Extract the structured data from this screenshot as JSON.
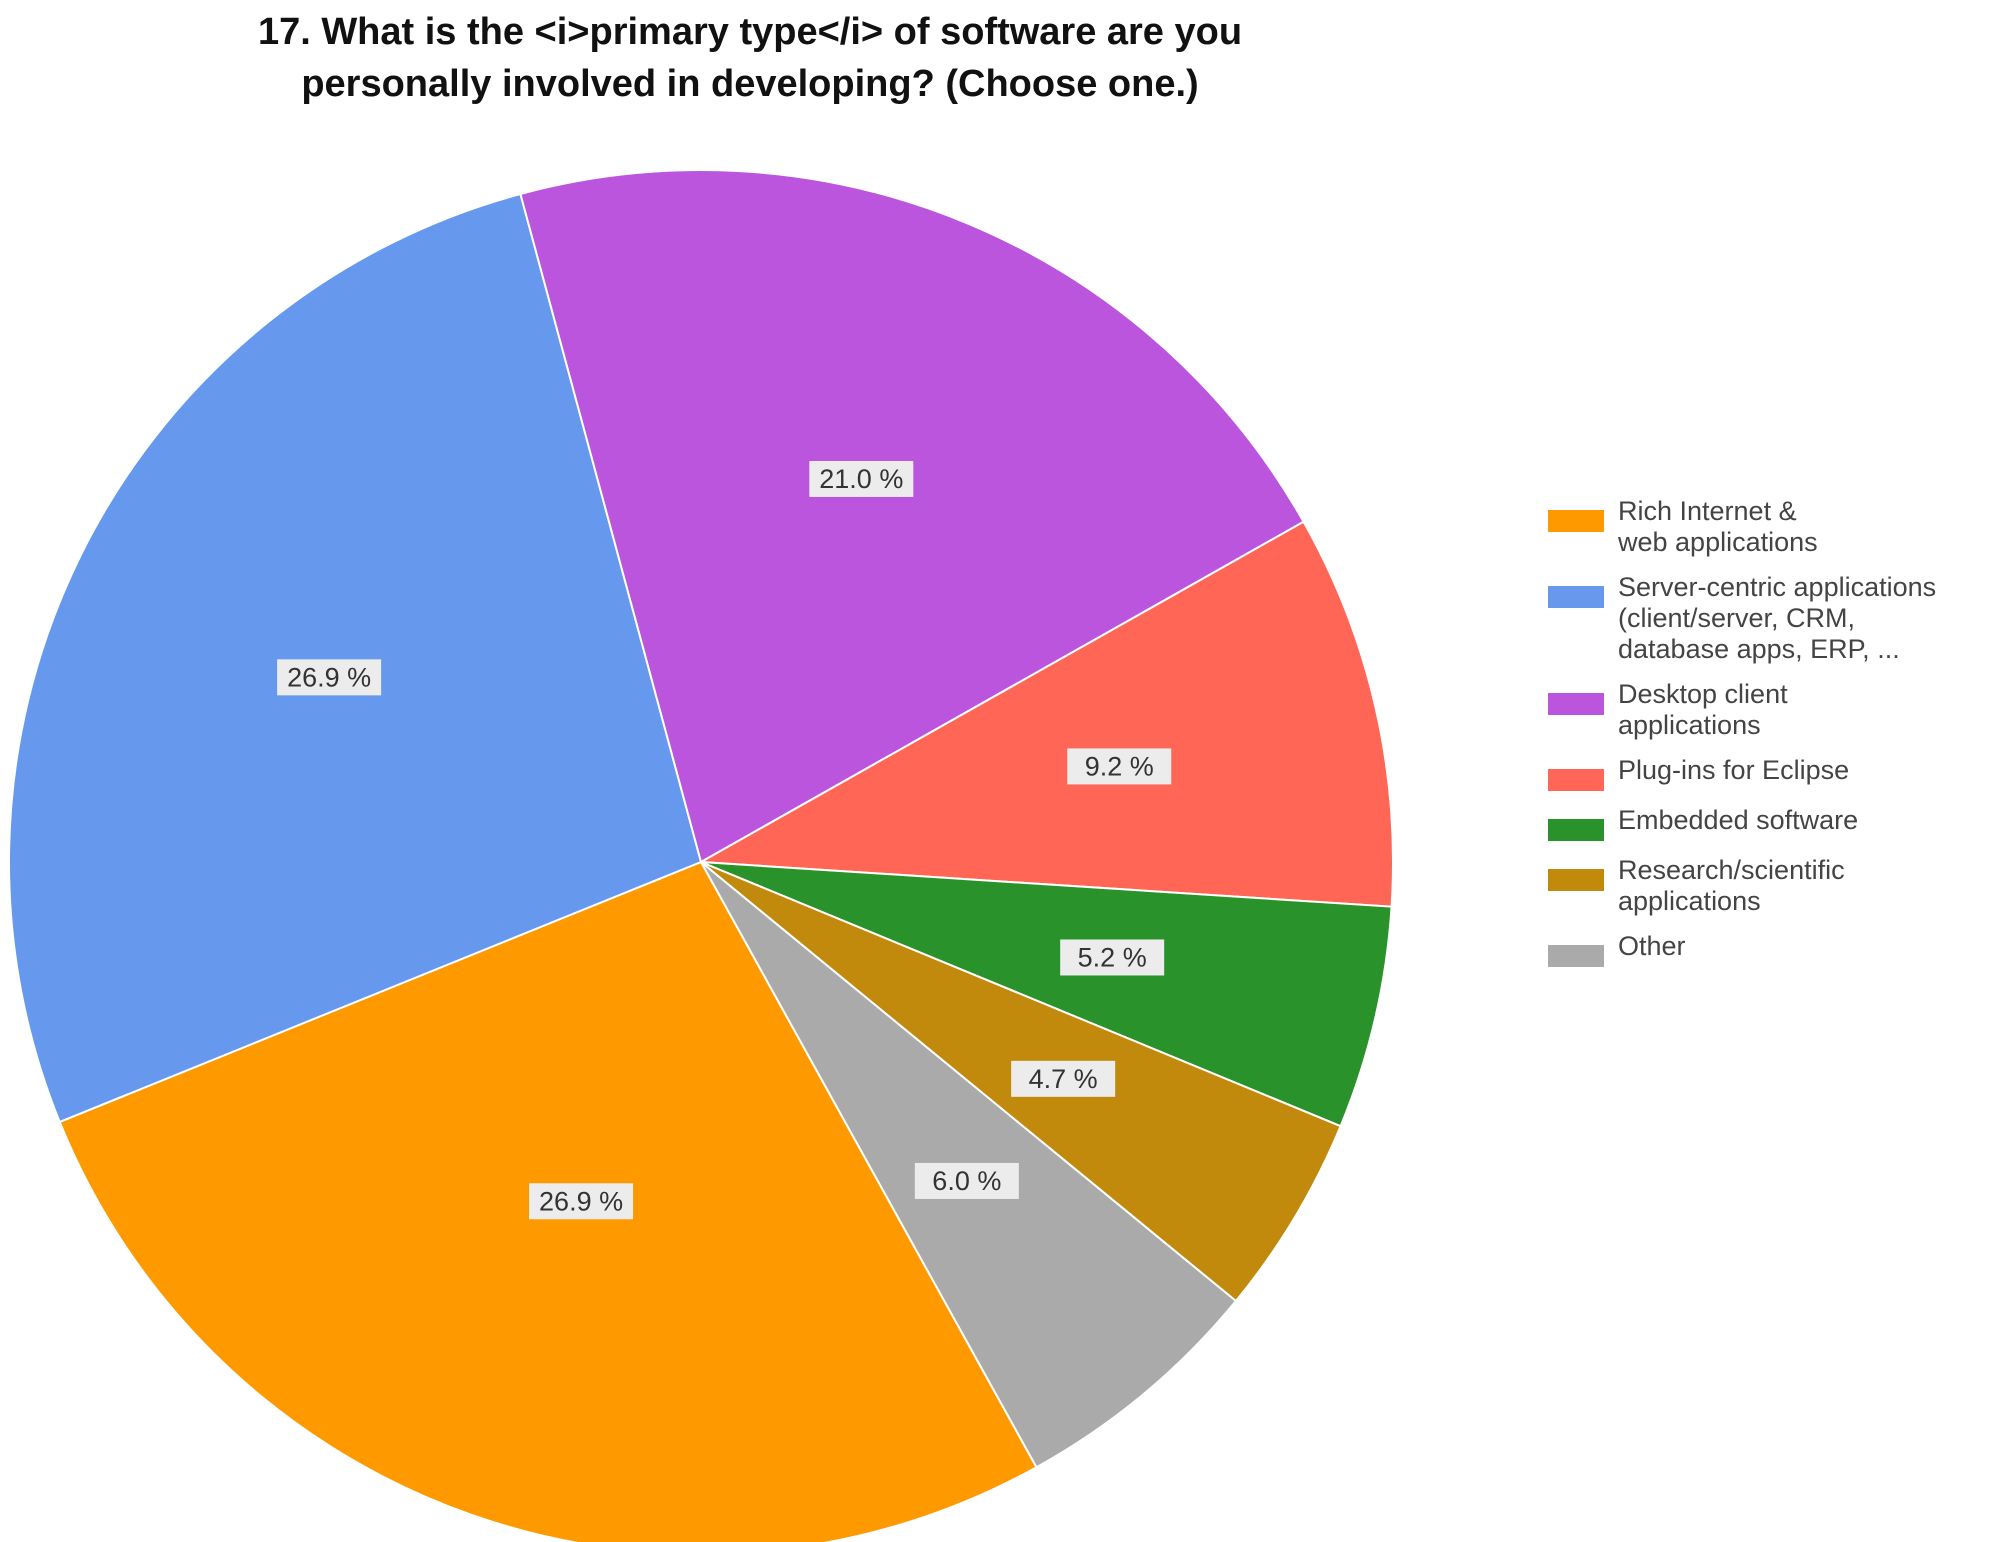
{
  "chart_data": {
    "type": "pie",
    "title_lines": [
      "17. What is the <i>primary type</i> of software are you",
      "personally involved in developing? (Choose one.)"
    ],
    "slices": [
      {
        "name": "Rich Internet & web applications",
        "value": 26.9,
        "label": "26.9 %",
        "color": "#ff9900",
        "legend_lines": [
          "Rich Internet &",
          "web applications"
        ]
      },
      {
        "name": "Server-centric applications (client/server, CRM, database apps, ERP, ...",
        "value": 26.9,
        "label": "26.9 %",
        "color": "#6699ee",
        "legend_lines": [
          "Server-centric applications",
          "(client/server, CRM,",
          "database apps, ERP, ..."
        ]
      },
      {
        "name": "Desktop client applications",
        "value": 21.0,
        "label": "21.0 %",
        "color": "#bb55dd",
        "legend_lines": [
          "Desktop client",
          "applications"
        ]
      },
      {
        "name": "Plug-ins for Eclipse",
        "value": 9.2,
        "label": "9.2 %",
        "color": "#ff6655",
        "legend_lines": [
          "Plug-ins for Eclipse"
        ]
      },
      {
        "name": "Embedded software",
        "value": 5.2,
        "label": "5.2 %",
        "color": "#2a922a",
        "legend_lines": [
          "Embedded software"
        ]
      },
      {
        "name": "Research/scientific applications",
        "value": 4.7,
        "label": "4.7 %",
        "color": "#c28a0c",
        "legend_lines": [
          "Research/scientific",
          "applications"
        ]
      },
      {
        "name": "Other",
        "value": 6.0,
        "label": "6.0 %",
        "color": "#aaaaaa",
        "legend_lines": [
          "Other"
        ]
      }
    ],
    "legend_position": "right"
  }
}
